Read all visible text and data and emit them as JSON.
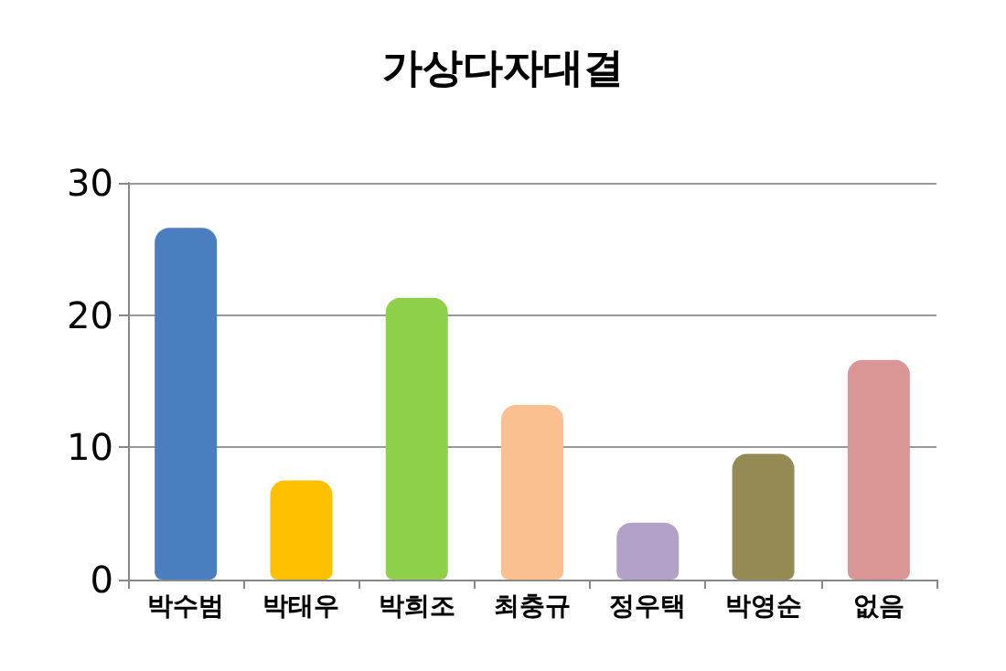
{
  "chart_data": {
    "type": "bar",
    "title": "가상다자대결",
    "categories": [
      "박수범",
      "박태우",
      "박희조",
      "최충규",
      "정우택",
      "박영순",
      "없음"
    ],
    "values": [
      26.6,
      7.5,
      21.3,
      13.2,
      4.3,
      9.5,
      16.6
    ],
    "colors": [
      "#4a7ebf",
      "#ffc000",
      "#8fd14a",
      "#fac090",
      "#b3a2c7",
      "#948a54",
      "#d99694"
    ],
    "ylim": [
      0,
      30
    ],
    "yticks": [
      0,
      10,
      20,
      30
    ],
    "grid": "y"
  }
}
